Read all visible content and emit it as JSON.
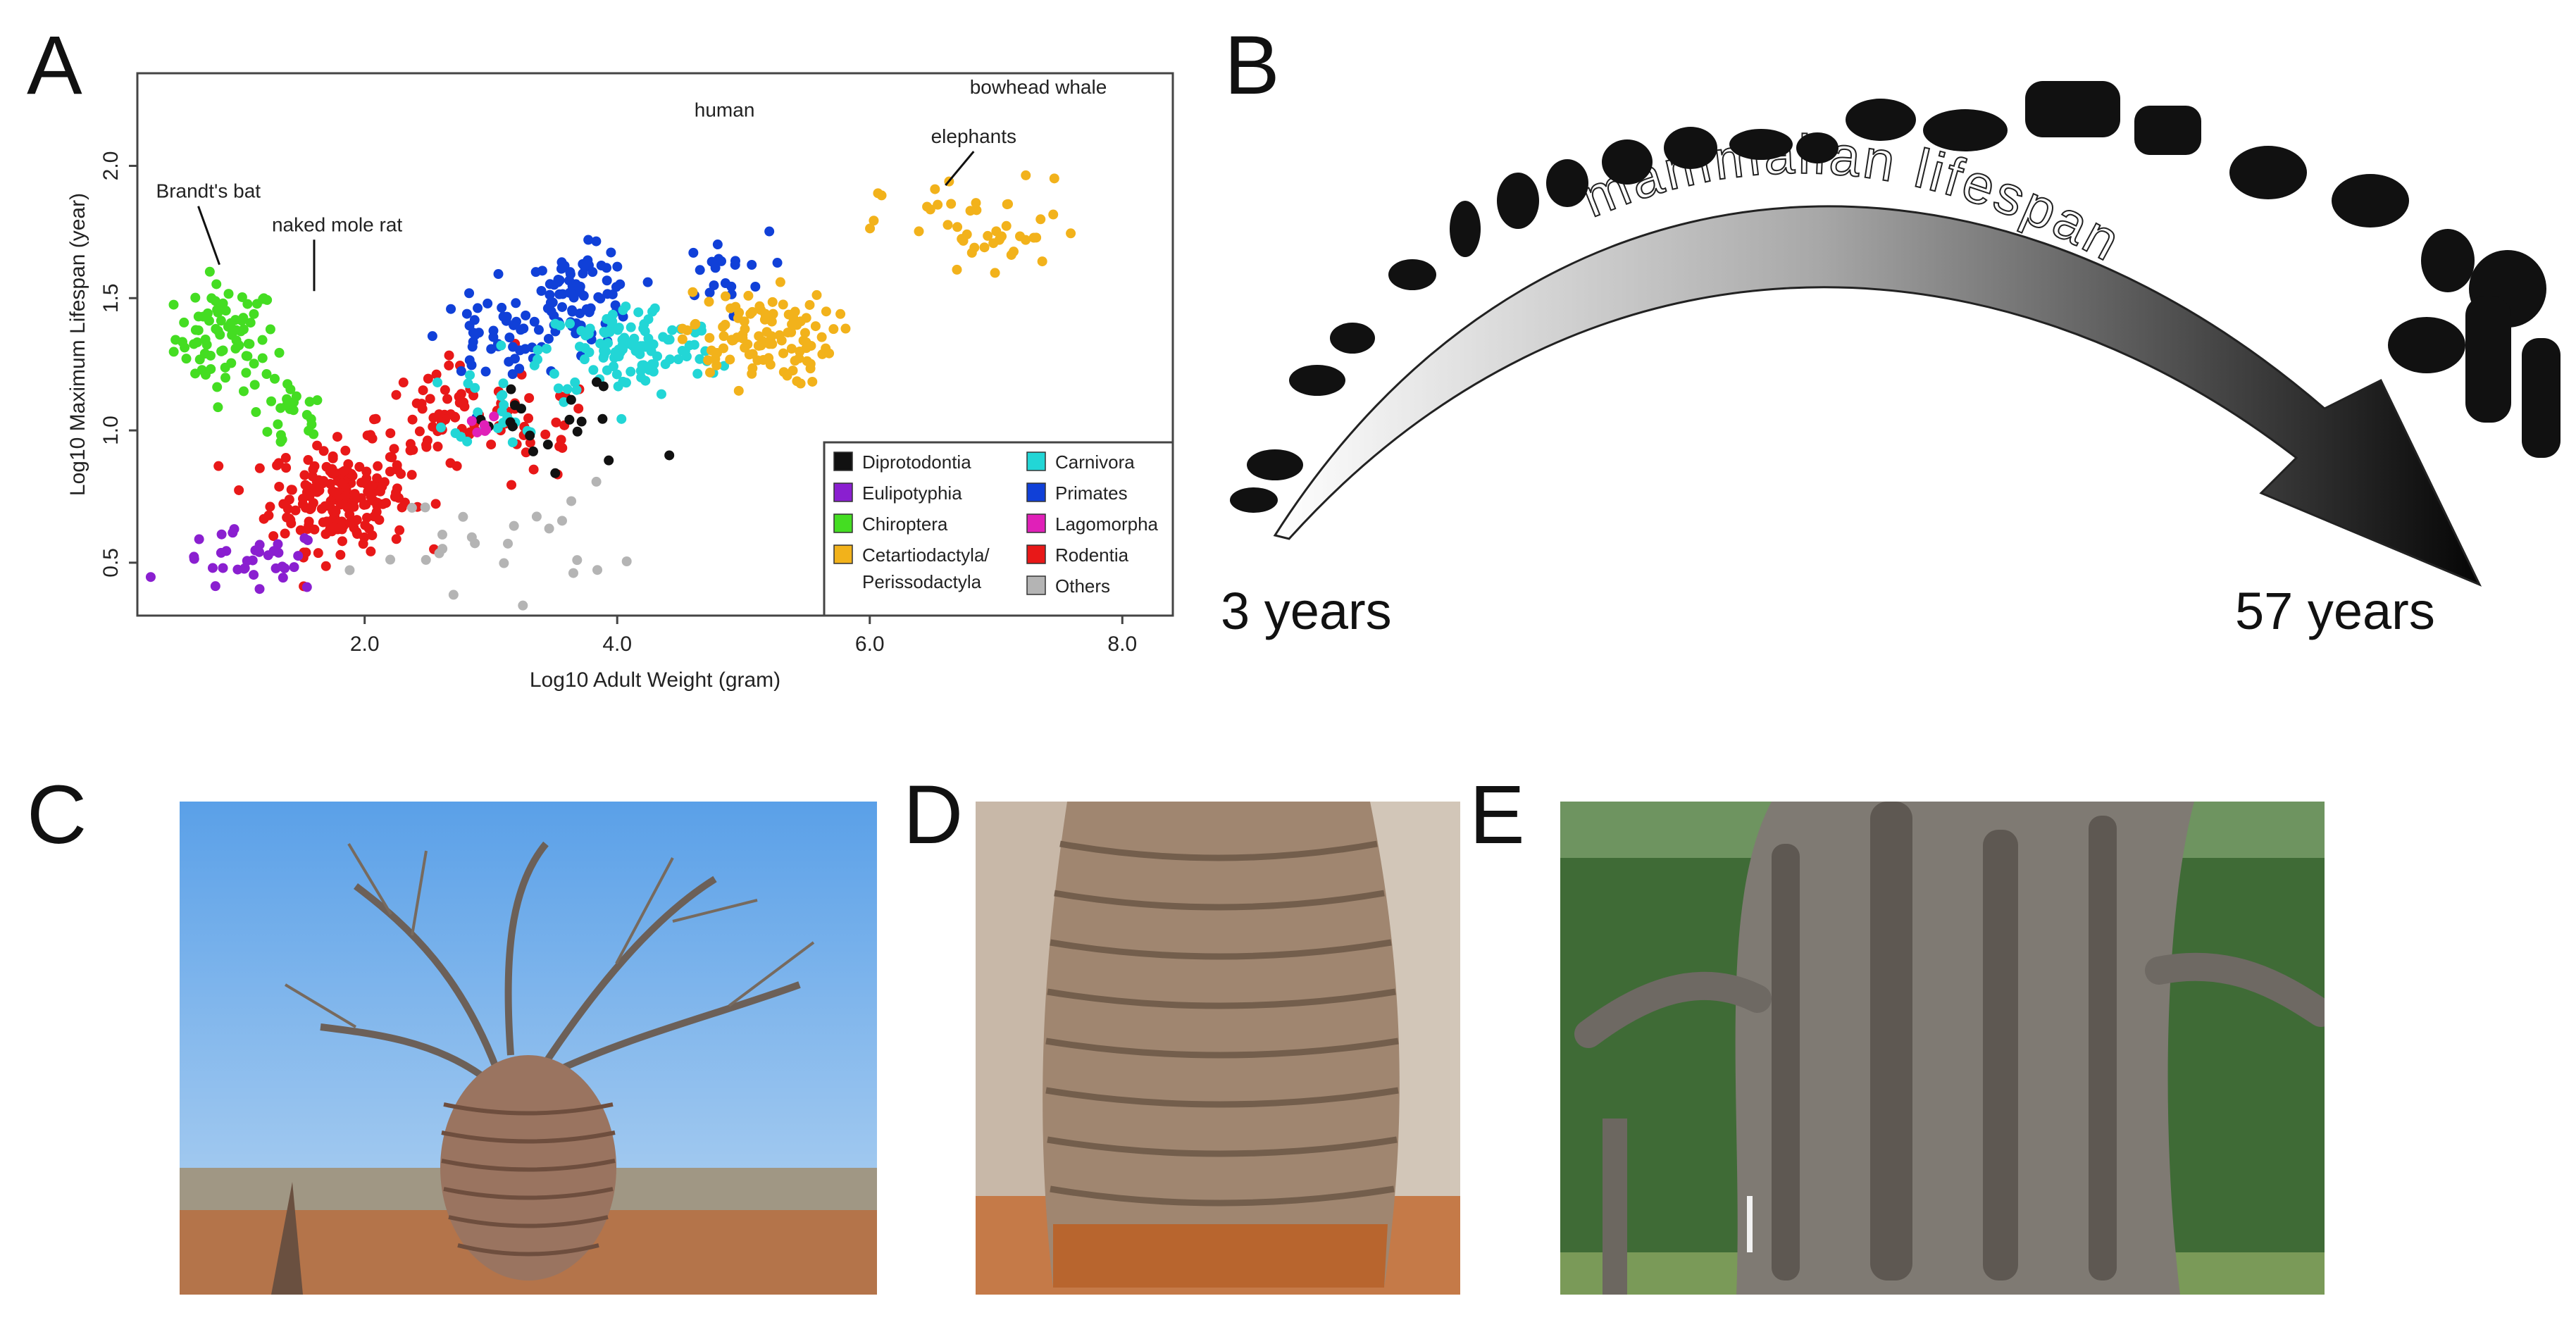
{
  "figure": {
    "panel_labels": {
      "a": "A",
      "b": "B",
      "c": "C",
      "d": "D",
      "e": "E"
    }
  },
  "panel_b": {
    "arrow_text": "mammalian lifespan",
    "start_label": "3 years",
    "end_label": "57 years"
  },
  "chart_data": {
    "type": "scatter",
    "xlabel": "Log10 Adult Weight (gram)",
    "ylabel": "Log10 Maximum  Lifespan (year)",
    "xlim": [
      0.2,
      8.4
    ],
    "ylim": [
      0.3,
      2.35
    ],
    "xticks": [
      "2.0",
      "4.0",
      "6.0",
      "8.0"
    ],
    "yticks": [
      "0.5",
      "1.0",
      "1.5",
      "2.0"
    ],
    "grid": false,
    "legend_position": "bottom-right",
    "colors": {
      "Diprotodontia": "#111111",
      "Eulipotyphia": "#8a1fd0",
      "Chiroptera": "#44dd22",
      "Cetartiodactyla/Perissodactyla": "#f2b21b",
      "Carnivora": "#22d6d6",
      "Primates": "#1040d8",
      "Lagomorpha": "#e020b8",
      "Rodentia": "#e81818",
      "Others": "#b4b4b4"
    },
    "legend": [
      {
        "label": "Diprotodontia",
        "color": "#111111"
      },
      {
        "label": "Eulipotyphia",
        "color": "#8a1fd0"
      },
      {
        "label": "Chiroptera",
        "color": "#44dd22"
      },
      {
        "label": "Cetartiodactyla/\nPerissodactyla",
        "color": "#f2b21b"
      },
      {
        "label": "Carnivora",
        "color": "#22d6d6"
      },
      {
        "label": "Primates",
        "color": "#1040d8"
      },
      {
        "label": "Lagomorpha",
        "color": "#e020b8"
      },
      {
        "label": "Rodentia",
        "color": "#e81818"
      },
      {
        "label": "Others",
        "color": "#b4b4b4"
      }
    ],
    "annotations": [
      {
        "text": "bowhead whale",
        "x": 8.0,
        "y": 2.3
      },
      {
        "text": "human",
        "x": 4.85,
        "y": 2.08
      },
      {
        "text": "elephants",
        "x": 6.6,
        "y": 1.9
      },
      {
        "text": "Brandt's bat",
        "x": 0.85,
        "y": 1.6
      },
      {
        "text": "naked mole rat",
        "x": 1.6,
        "y": 1.5
      }
    ],
    "series": [
      {
        "name": "Chiroptera",
        "clusters": [
          [
            0.9,
            1.35,
            0.4,
            0.2,
            80
          ],
          [
            1.4,
            1.05,
            0.3,
            0.15,
            25
          ]
        ]
      },
      {
        "name": "Rodentia",
        "clusters": [
          [
            1.8,
            0.75,
            0.55,
            0.2,
            200
          ],
          [
            2.6,
            1.05,
            0.5,
            0.2,
            60
          ],
          [
            3.3,
            1.0,
            0.5,
            0.2,
            30
          ]
        ]
      },
      {
        "name": "Eulipotyphia",
        "clusters": [
          [
            1.1,
            0.5,
            0.6,
            0.12,
            35
          ]
        ]
      },
      {
        "name": "Primates",
        "clusters": [
          [
            3.7,
            1.5,
            0.45,
            0.18,
            90
          ],
          [
            3.0,
            1.35,
            0.4,
            0.15,
            40
          ],
          [
            4.8,
            1.6,
            0.4,
            0.15,
            20
          ]
        ]
      },
      {
        "name": "Carnivora",
        "clusters": [
          [
            4.1,
            1.3,
            0.7,
            0.18,
            120
          ],
          [
            3.1,
            1.1,
            0.4,
            0.15,
            25
          ]
        ]
      },
      {
        "name": "Cetartiodactyla/Perissodactyla",
        "clusters": [
          [
            5.1,
            1.35,
            0.6,
            0.18,
            110
          ],
          [
            6.9,
            1.75,
            0.8,
            0.2,
            45
          ]
        ]
      },
      {
        "name": "Diprotodontia",
        "clusters": [
          [
            3.5,
            1.0,
            0.8,
            0.2,
            20
          ]
        ]
      },
      {
        "name": "Lagomorpha",
        "clusters": [
          [
            3.0,
            1.0,
            0.5,
            0.1,
            6
          ]
        ]
      },
      {
        "name": "Others",
        "clusters": [
          [
            3.0,
            0.6,
            1.0,
            0.2,
            25
          ]
        ]
      }
    ]
  }
}
